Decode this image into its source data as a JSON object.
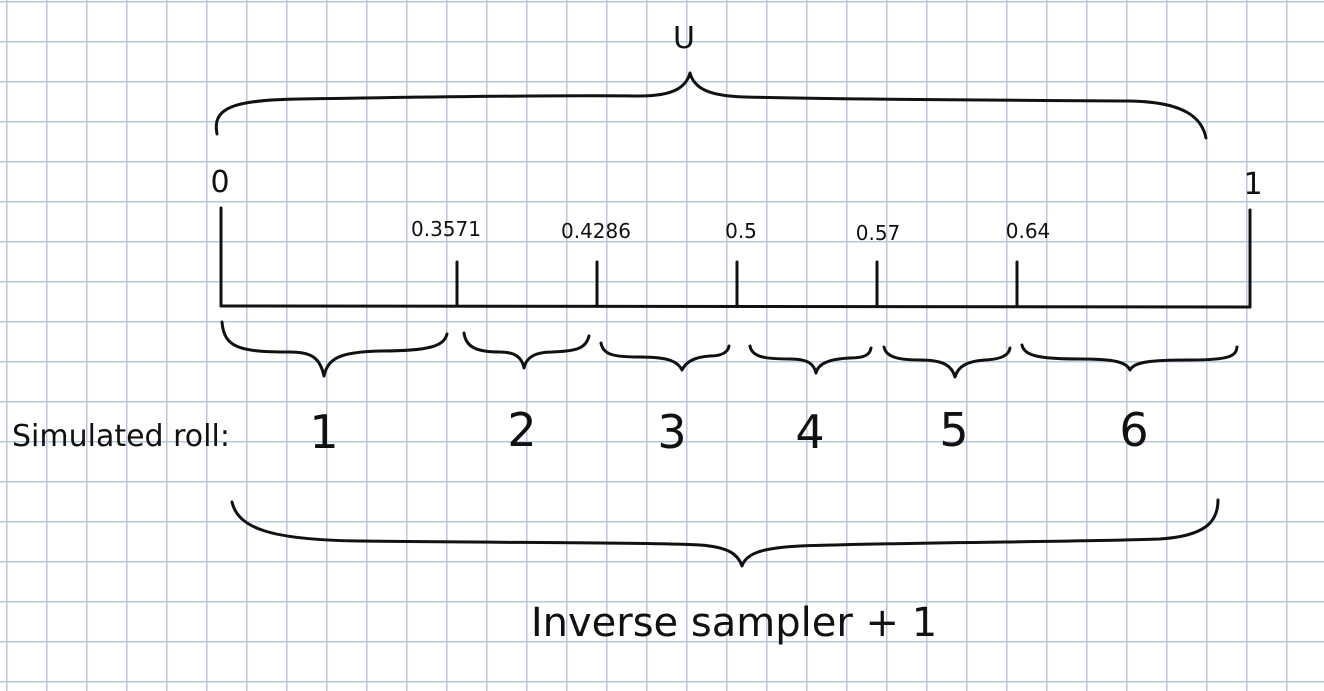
{
  "variable_label": "U",
  "axis": {
    "start_label": "0",
    "end_label": "1",
    "tick_labels": [
      "0.3571",
      "0.4286",
      "0.5",
      "0.57",
      "0.64"
    ]
  },
  "simulated_roll_label": "Simulated roll:",
  "rolls": [
    "1",
    "2",
    "3",
    "4",
    "5",
    "6"
  ],
  "caption": "Inverse sampler + 1",
  "colors": {
    "ink": "#111111",
    "grid": "#b9c7db",
    "paper": "#ffffff"
  }
}
